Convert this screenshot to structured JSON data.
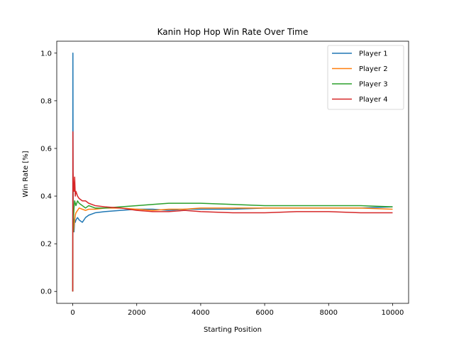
{
  "chart_data": {
    "type": "line",
    "title": "Kanin Hop Hop Win Rate Over Time",
    "xlabel": "Starting Position",
    "ylabel": "Win Rate [%]",
    "xlim": [
      -500,
      10500
    ],
    "ylim": [
      -0.05,
      1.05
    ],
    "xticks": [
      0,
      2000,
      4000,
      6000,
      8000,
      10000
    ],
    "xtick_labels": [
      "0",
      "2000",
      "4000",
      "6000",
      "8000",
      "10000"
    ],
    "yticks": [
      0.0,
      0.2,
      0.4,
      0.6,
      0.8,
      1.0
    ],
    "ytick_labels": [
      "0.0",
      "0.2",
      "0.4",
      "0.6",
      "0.8",
      "1.0"
    ],
    "grid": false,
    "legend": "top-right",
    "series": [
      {
        "name": "Player 1",
        "color": "#1f77b4",
        "x": [
          0,
          5,
          10,
          20,
          40,
          60,
          80,
          100,
          150,
          200,
          300,
          400,
          500,
          700,
          1000,
          1500,
          2000,
          2500,
          3000,
          3500,
          4000,
          5000,
          6000,
          7000,
          8000,
          9000,
          10000
        ],
        "y": [
          0.0,
          1.0,
          0.5,
          0.33,
          0.25,
          0.3,
          0.29,
          0.3,
          0.31,
          0.3,
          0.29,
          0.31,
          0.32,
          0.33,
          0.335,
          0.34,
          0.345,
          0.345,
          0.34,
          0.345,
          0.345,
          0.345,
          0.35,
          0.35,
          0.35,
          0.35,
          0.355
        ]
      },
      {
        "name": "Player 2",
        "color": "#ff7f0e",
        "x": [
          0,
          5,
          10,
          20,
          40,
          60,
          80,
          100,
          150,
          200,
          300,
          400,
          500,
          700,
          1000,
          1500,
          2000,
          2500,
          3000,
          3500,
          4000,
          5000,
          6000,
          7000,
          8000,
          9000,
          10000
        ],
        "y": [
          0.0,
          0.5,
          0.33,
          0.25,
          0.28,
          0.3,
          0.32,
          0.33,
          0.34,
          0.35,
          0.345,
          0.34,
          0.345,
          0.345,
          0.35,
          0.35,
          0.345,
          0.34,
          0.345,
          0.345,
          0.35,
          0.35,
          0.35,
          0.35,
          0.35,
          0.35,
          0.345
        ]
      },
      {
        "name": "Player 3",
        "color": "#2ca02c",
        "x": [
          0,
          5,
          10,
          20,
          40,
          60,
          80,
          100,
          150,
          200,
          300,
          400,
          500,
          700,
          1000,
          1500,
          2000,
          2500,
          3000,
          3500,
          4000,
          5000,
          6000,
          7000,
          8000,
          9000,
          10000
        ],
        "y": [
          0.0,
          0.33,
          0.25,
          0.3,
          0.35,
          0.38,
          0.37,
          0.36,
          0.38,
          0.37,
          0.36,
          0.35,
          0.36,
          0.35,
          0.35,
          0.355,
          0.36,
          0.365,
          0.37,
          0.37,
          0.37,
          0.365,
          0.36,
          0.36,
          0.36,
          0.36,
          0.355
        ]
      },
      {
        "name": "Player 4",
        "color": "#d62728",
        "x": [
          0,
          5,
          10,
          20,
          40,
          60,
          80,
          100,
          150,
          200,
          300,
          400,
          500,
          700,
          1000,
          1500,
          2000,
          2500,
          3000,
          3500,
          4000,
          5000,
          6000,
          7000,
          8000,
          9000,
          10000
        ],
        "y": [
          0.0,
          0.67,
          0.5,
          0.45,
          0.42,
          0.48,
          0.4,
          0.42,
          0.4,
          0.39,
          0.38,
          0.38,
          0.37,
          0.36,
          0.355,
          0.35,
          0.34,
          0.335,
          0.335,
          0.34,
          0.335,
          0.33,
          0.33,
          0.335,
          0.335,
          0.33,
          0.33
        ]
      }
    ]
  }
}
